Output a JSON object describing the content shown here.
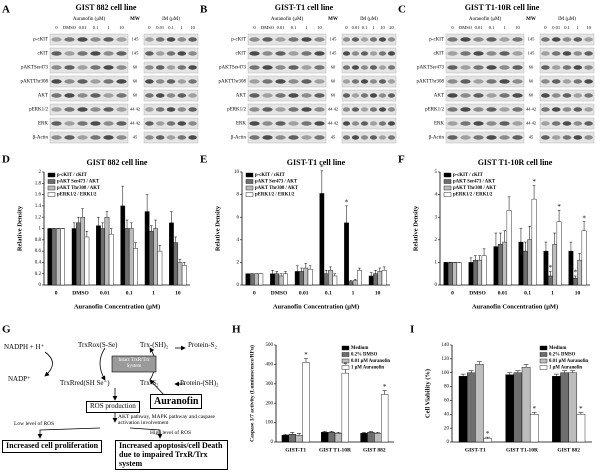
{
  "panel_labels": [
    "A",
    "B",
    "C",
    "D",
    "E",
    "F",
    "G",
    "H",
    "I"
  ],
  "blots": [
    {
      "title": "GIST 882 cell line",
      "treatments": [
        "Auranofin (μM)",
        "IM (μM)"
      ],
      "auranofin_lanes": [
        "0",
        "DMSO",
        "0.01",
        "0.1",
        "1",
        "10"
      ],
      "mw_label": "MW",
      "im_lanes": [
        "0",
        "0.01",
        "0.1",
        "1",
        "10"
      ],
      "rows": [
        "p-cKIT",
        "cKIT",
        "pAKTSer473",
        "pAKTThr308",
        "AKT",
        "pERK1/2",
        "ERK",
        "β-Actin"
      ],
      "mw": [
        "145",
        "145",
        "60",
        "60",
        "60",
        "44 42",
        "44 42",
        "45"
      ]
    },
    {
      "title": "GIST-T1 cell line",
      "treatments": [
        "Auranofin (μM)",
        "IM (μM)"
      ],
      "auranofin_lanes": [
        "0",
        "DMSO",
        "0.01",
        "0.1",
        "1",
        "10"
      ],
      "mw_label": "MW",
      "im_lanes": [
        "0",
        "0.01",
        "0.1",
        "1",
        "10",
        "20"
      ],
      "rows": [
        "p-cKIT",
        "cKIT",
        "pAKTSer473",
        "pAKTThr308",
        "AKT",
        "pERK1/2",
        "ERK",
        "β-Actin"
      ],
      "mw": [
        "145",
        "145",
        "60",
        "60",
        "60",
        "44 42",
        "44 42",
        "45"
      ]
    },
    {
      "title": "GIST T1-10R cell line",
      "treatments": [
        "Auranofin (μM)",
        "IM (μM)"
      ],
      "auranofin_lanes": [
        "0",
        "DMSO",
        "0.01",
        "0.1",
        "1",
        "10"
      ],
      "mw_label": "MW",
      "im_lanes": [
        "0",
        "0.01",
        "0.1",
        "1",
        "10"
      ],
      "rows": [
        "p-cKIT",
        "cKIT",
        "pAKTSer473",
        "pAKTThr308",
        "AKT",
        "pERK1/2",
        "ERK",
        "β-Actin"
      ],
      "mw": [
        "145",
        "145",
        "60",
        "60",
        "60",
        "44 42",
        "44 42",
        "45"
      ]
    }
  ],
  "chart_data": [
    {
      "type": "bar",
      "title": "GIST 882 cell line",
      "xlabel": "Auranofin Concentration (μM)",
      "ylabel": "Relative Density",
      "categories": [
        "0",
        "DMSO",
        "0.01",
        "0.1",
        "1",
        "10"
      ],
      "ylim": [
        0,
        2
      ],
      "yticks": [
        0,
        0.2,
        0.4,
        0.6,
        0.8,
        1,
        1.2,
        1.4,
        1.6,
        1.8,
        2
      ],
      "legend": "upper left",
      "series": [
        {
          "name": "p-cKIT / cKIT",
          "color": "#000000",
          "values": [
            1,
            1.0,
            1.05,
            1.4,
            1.3,
            1.1
          ],
          "errors": [
            0,
            0.1,
            0.15,
            0.35,
            0.3,
            0.2
          ]
        },
        {
          "name": "pAKT Ser473 / AKT",
          "color": "#6e6e6e",
          "values": [
            1,
            1.1,
            1.0,
            1.0,
            0.95,
            0.75
          ],
          "errors": [
            0,
            0.1,
            0.1,
            0.15,
            0.1,
            0.1
          ]
        },
        {
          "name": "pAKT Thr308 / AKT",
          "color": "#bdbdbd",
          "values": [
            1,
            1.2,
            1.2,
            1.0,
            1.0,
            0.4
          ],
          "errors": [
            0,
            0.15,
            0.1,
            0.1,
            0.15,
            0.05
          ]
        },
        {
          "name": "pERK1/2 / ERK1/2",
          "color": "#ffffff",
          "values": [
            1,
            0.85,
            0.9,
            0.65,
            0.6,
            0.35
          ],
          "errors": [
            0,
            0.1,
            0.1,
            0.1,
            0.1,
            0.05
          ]
        }
      ]
    },
    {
      "type": "bar",
      "title": "GIST-T1 cell line",
      "xlabel": "Auranofin Concentration (μM)",
      "ylabel": "Relative Density",
      "categories": [
        "0",
        "DMSO",
        "0.01",
        "0.1",
        "1",
        "10"
      ],
      "ylim": [
        0,
        10
      ],
      "yticks": [
        0,
        2,
        4,
        6,
        8,
        10
      ],
      "legend": "upper left",
      "series": [
        {
          "name": "p-cKIT / cKIT",
          "color": "#000000",
          "values": [
            1,
            1.0,
            1.2,
            8.1,
            5.5,
            0.8
          ],
          "errors": [
            0,
            0.3,
            0.5,
            2.0,
            1.5,
            0.3
          ],
          "significance": [
            null,
            null,
            null,
            "*",
            "*",
            null
          ]
        },
        {
          "name": "pAKT Ser473 / AKT",
          "color": "#6e6e6e",
          "values": [
            1,
            1.0,
            1.2,
            1.0,
            0.3,
            1.0
          ],
          "errors": [
            0,
            0.2,
            0.3,
            0.3,
            0.1,
            0.3
          ]
        },
        {
          "name": "pAKT Thr308 / AKT",
          "color": "#bdbdbd",
          "values": [
            1,
            0.8,
            1.5,
            1.3,
            0.4,
            1.2
          ],
          "errors": [
            0,
            0.2,
            0.4,
            0.3,
            0.1,
            0.3
          ]
        },
        {
          "name": "pERK1/2 / ERK1/2",
          "color": "#ffffff",
          "values": [
            1,
            1.0,
            1.4,
            0.8,
            1.3,
            1.3
          ],
          "errors": [
            0,
            0.2,
            0.3,
            0.2,
            0.2,
            0.3
          ]
        }
      ]
    },
    {
      "type": "bar",
      "title": "GIST T1-10R cell line",
      "xlabel": "Auranofin Concentration (μM)",
      "ylabel": "Relative Density",
      "categories": [
        "0",
        "DMSO",
        "0.01",
        "0.1",
        "1",
        "10"
      ],
      "ylim": [
        0,
        5
      ],
      "yticks": [
        0,
        1,
        2,
        3,
        4,
        5
      ],
      "legend": "upper left",
      "series": [
        {
          "name": "p-cKIT / cKIT",
          "color": "#000000",
          "values": [
            1,
            1.0,
            1.7,
            1.9,
            1.5,
            1.5
          ],
          "errors": [
            0,
            0.2,
            0.6,
            0.6,
            0.4,
            0.4
          ]
        },
        {
          "name": "pAKT Ser473 / AKT",
          "color": "#6e6e6e",
          "values": [
            1,
            1.1,
            1.8,
            1.5,
            0.4,
            0.3
          ],
          "errors": [
            0,
            0.2,
            0.5,
            0.4,
            0.2,
            0.1
          ],
          "significance": [
            null,
            null,
            null,
            null,
            "*",
            "*"
          ]
        },
        {
          "name": "pAKT Thr308 / AKT",
          "color": "#bdbdbd",
          "values": [
            1,
            1.1,
            1.9,
            2.0,
            1.8,
            1.1
          ],
          "errors": [
            0,
            0.2,
            0.5,
            0.6,
            0.5,
            0.3
          ]
        },
        {
          "name": "pERK1/2 / ERK1/2",
          "color": "#ffffff",
          "values": [
            1,
            1.3,
            3.3,
            3.8,
            2.8,
            2.4
          ],
          "errors": [
            0,
            0.3,
            0.6,
            0.6,
            0.5,
            0.4
          ],
          "significance": [
            null,
            null,
            null,
            "*",
            "*",
            "*"
          ]
        }
      ]
    },
    {
      "type": "bar",
      "ylabel": "Caspase 3/7 activity (Luminescence/RFu)",
      "categories": [
        "GIST-T1",
        "GIST T1-10R",
        "GIST 882"
      ],
      "ylim": [
        0,
        500
      ],
      "yticks": [
        0,
        100,
        200,
        300,
        400,
        500
      ],
      "legend": "upper right",
      "series": [
        {
          "name": "Medium",
          "color": "#000000",
          "values": [
            35,
            50,
            45
          ],
          "errors": [
            5,
            5,
            5
          ]
        },
        {
          "name": "0.2% DMSO",
          "color": "#6e6e6e",
          "values": [
            40,
            50,
            50
          ],
          "errors": [
            10,
            5,
            5
          ]
        },
        {
          "name": "0.01 μM Auranofin",
          "color": "#bdbdbd",
          "values": [
            35,
            45,
            45
          ],
          "errors": [
            10,
            5,
            5
          ]
        },
        {
          "name": "1 μM Auranofin",
          "color": "#ffffff",
          "values": [
            410,
            355,
            245
          ],
          "errors": [
            20,
            25,
            20
          ],
          "significance": [
            "*",
            "*",
            "*"
          ]
        }
      ]
    },
    {
      "type": "bar",
      "ylabel": "Cell Viability (%)",
      "categories": [
        "GIST-T1",
        "GIST T1-10R",
        "GIST 882"
      ],
      "ylim": [
        0,
        140
      ],
      "yticks": [
        0,
        20,
        40,
        60,
        80,
        100,
        120,
        140
      ],
      "legend": "upper right",
      "series": [
        {
          "name": "Medium",
          "color": "#000000",
          "values": [
            95,
            97,
            95
          ],
          "errors": [
            3,
            3,
            3
          ]
        },
        {
          "name": "0.2% DMSO",
          "color": "#6e6e6e",
          "values": [
            100,
            100,
            100
          ],
          "errors": [
            3,
            3,
            3
          ]
        },
        {
          "name": "0.01 μM Auranofin",
          "color": "#bdbdbd",
          "values": [
            112,
            108,
            100
          ],
          "errors": [
            4,
            4,
            3
          ]
        },
        {
          "name": "1 μM Auranofin",
          "color": "#ffffff",
          "values": [
            5,
            40,
            40
          ],
          "errors": [
            2,
            3,
            3
          ],
          "significance": [
            "*",
            "*",
            "*"
          ]
        }
      ]
    }
  ],
  "diagram": {
    "nadph": "NADPH + H⁺",
    "nadp": "NADP⁺",
    "trxr_ox": "TrxRox(S-Se)",
    "trxr_red": "TrxRred(SH Se⁻)",
    "trx_sh": "Trx-(SH)₂",
    "trx_s": "Trx-S₂",
    "protein_s": "Protein-S₂",
    "protein_sh": "Protein-(SH)₂",
    "intact": "Intact TrxR/Trx System",
    "auranofin": "Auranofin",
    "ros": "ROS production",
    "pathways": "AKT pathway, MAPK pathway and caspase activation involvement",
    "low_ros": "Low level of ROS",
    "high_ros": "High level of ROS",
    "proliferation": "Increased cell proliferation",
    "apoptosis": "Increased apoptosis/cell Death due to impaired TrxR/Trx system"
  }
}
